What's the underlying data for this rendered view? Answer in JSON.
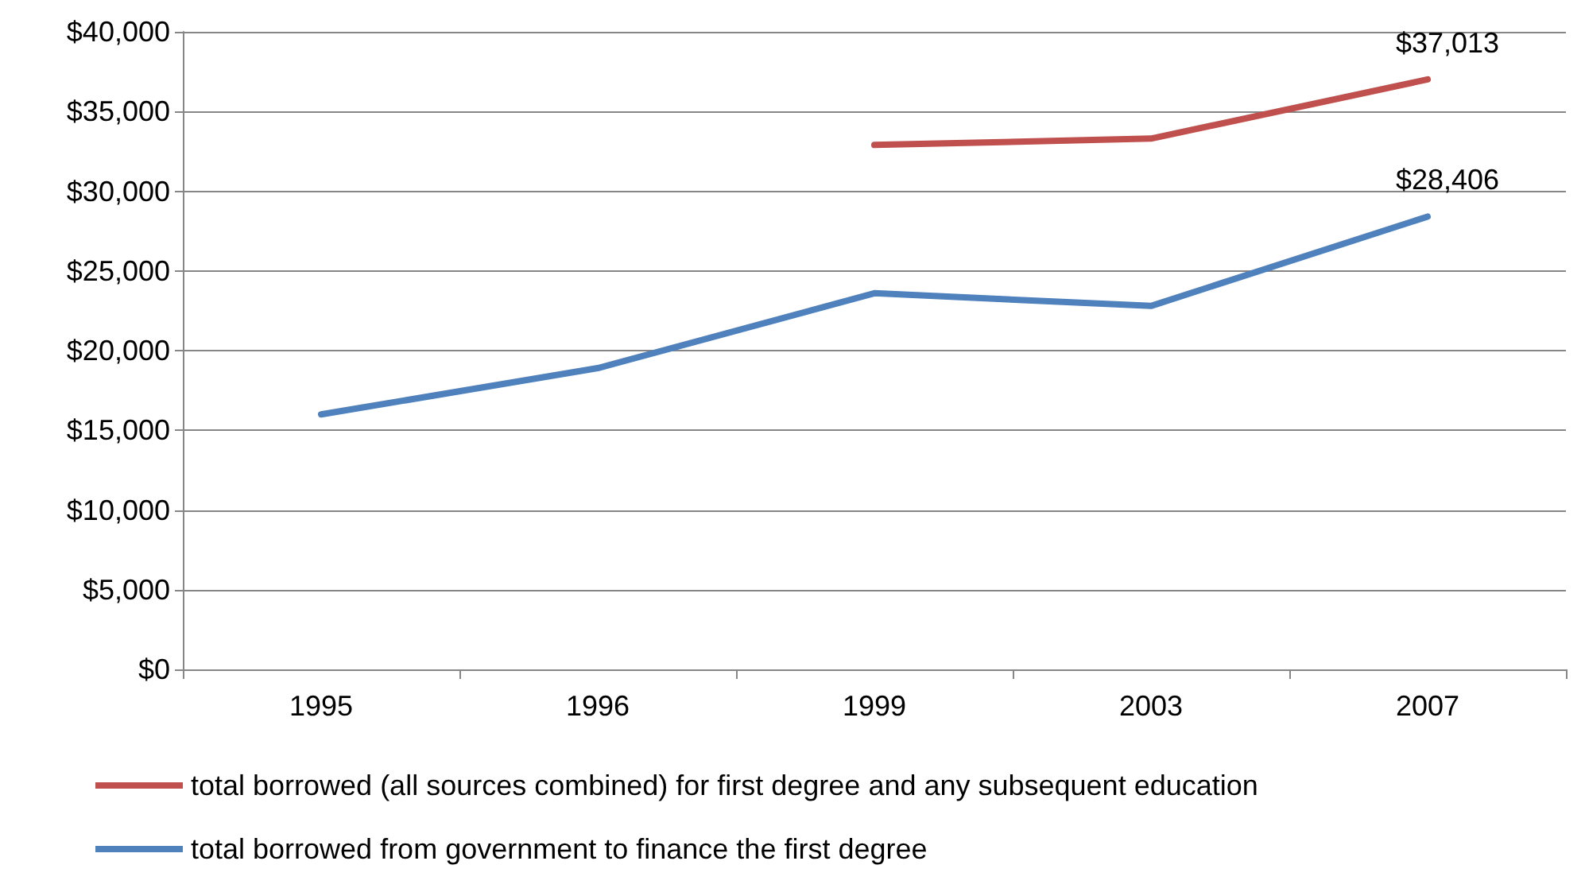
{
  "chart_data": {
    "type": "line",
    "categories": [
      "1995",
      "1996",
      "1999",
      "2003",
      "2007"
    ],
    "series": [
      {
        "name": "total borrowed (all sources combined) for first degree and any subsequent education",
        "color": "#c0504d",
        "values": [
          null,
          null,
          32900,
          33300,
          37013
        ],
        "value_labels": [
          null,
          null,
          null,
          null,
          "$37,013"
        ]
      },
      {
        "name": "total borrowed from government to finance the first degree",
        "color": "#4f81bd",
        "values": [
          16000,
          18900,
          23600,
          22800,
          28406
        ],
        "value_labels": [
          null,
          null,
          null,
          null,
          "$28,406"
        ]
      }
    ],
    "ylim": [
      0,
      40000
    ],
    "yticks": [
      {
        "value": 0,
        "label": "$0"
      },
      {
        "value": 5000,
        "label": "$5,000"
      },
      {
        "value": 10000,
        "label": "$10,000"
      },
      {
        "value": 15000,
        "label": "$15,000"
      },
      {
        "value": 20000,
        "label": "$20,000"
      },
      {
        "value": 25000,
        "label": "$25,000"
      },
      {
        "value": 30000,
        "label": "$30,000"
      },
      {
        "value": 35000,
        "label": "$35,000"
      },
      {
        "value": 40000,
        "label": "$40,000"
      }
    ],
    "grid": "y",
    "legend": "bottom",
    "marker": "none",
    "line_style": "solid"
  }
}
